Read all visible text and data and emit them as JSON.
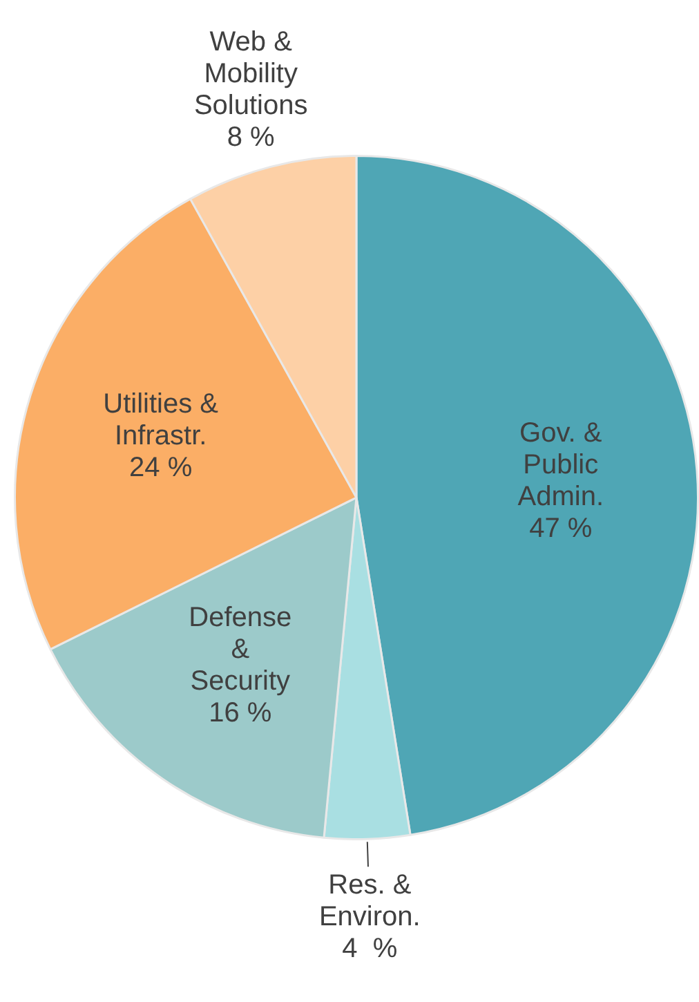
{
  "chart_data": {
    "type": "pie",
    "categories": [
      "Gov. & Public Admin.",
      "Res. & Environ.",
      "Defense & Security",
      "Utilities & Infrastr.",
      "Web & Mobility Solutions"
    ],
    "values": [
      47,
      4,
      16,
      24,
      8
    ],
    "value_labels": [
      "47 %",
      "4  %",
      "16 %",
      "24 %",
      "8 %"
    ],
    "colors": [
      "#4fa6b5",
      "#a9dfe2",
      "#9ccaca",
      "#fbae66",
      "#fdd0a6"
    ],
    "legend": false
  }
}
